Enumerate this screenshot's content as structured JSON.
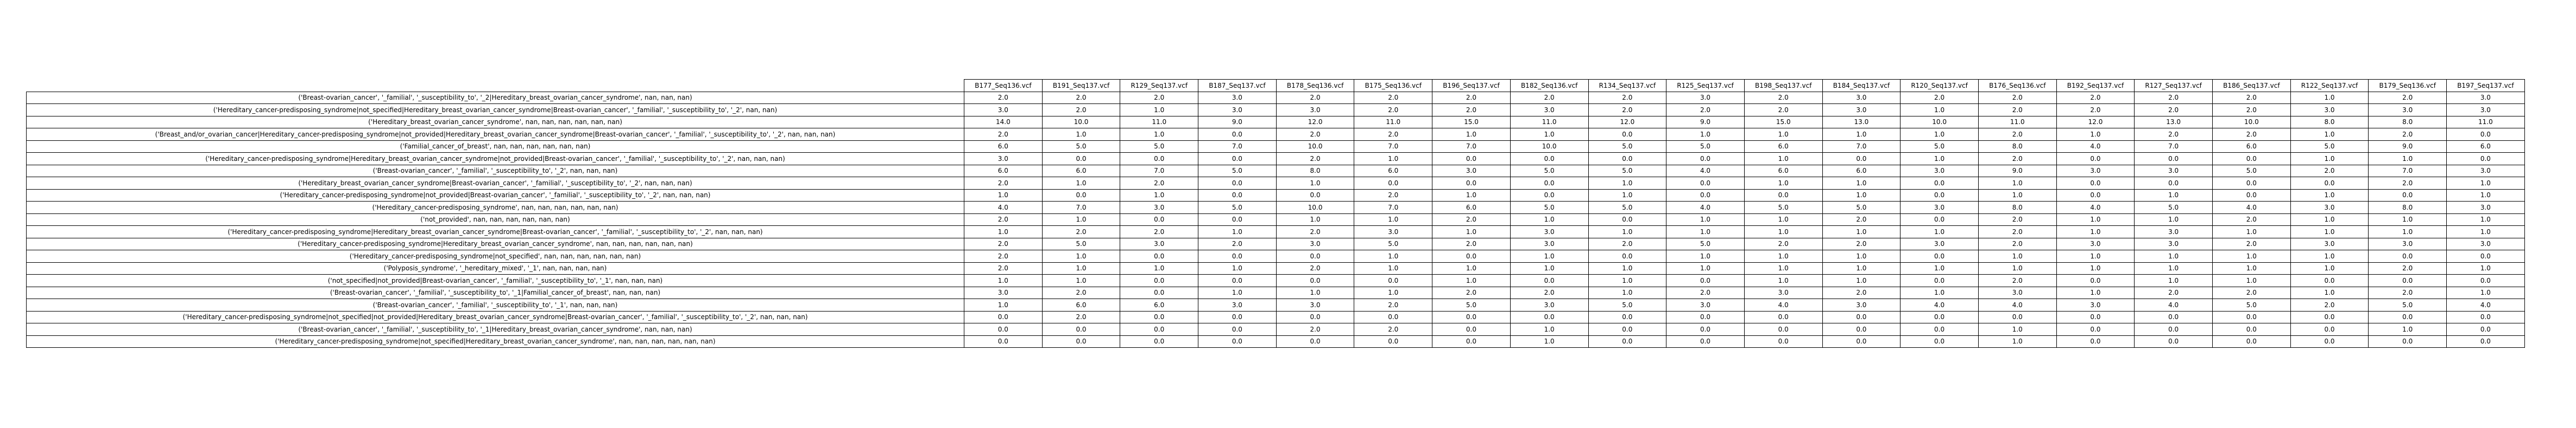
{
  "chart_data": {
    "type": "table",
    "columns": [
      "B177_Seq136.vcf",
      "B191_Seq137.vcf",
      "R129_Seq137.vcf",
      "B187_Seq137.vcf",
      "B178_Seq136.vcf",
      "B175_Seq136.vcf",
      "B196_Seq137.vcf",
      "B182_Seq136.vcf",
      "R134_Seq137.vcf",
      "R125_Seq137.vcf",
      "B198_Seq137.vcf",
      "B184_Seq137.vcf",
      "R120_Seq137.vcf",
      "B176_Seq136.vcf",
      "B192_Seq137.vcf",
      "R127_Seq137.vcf",
      "B186_Seq137.vcf",
      "R122_Seq137.vcf",
      "B179_Seq136.vcf",
      "B197_Seq137.vcf"
    ],
    "rows": [
      {
        "label": "('Breast-ovarian_cancer', '_familial', '_susceptibility_to', '_2|Hereditary_breast_ovarian_cancer_syndrome', nan, nan, nan)",
        "values": [
          "2.0",
          "2.0",
          "2.0",
          "3.0",
          "2.0",
          "2.0",
          "2.0",
          "2.0",
          "2.0",
          "3.0",
          "2.0",
          "3.0",
          "2.0",
          "2.0",
          "2.0",
          "2.0",
          "2.0",
          "1.0",
          "2.0",
          "3.0"
        ]
      },
      {
        "label": "('Hereditary_cancer-predisposing_syndrome|not_specified|Hereditary_breast_ovarian_cancer_syndrome|Breast-ovarian_cancer', '_familial', '_susceptibility_to', '_2', nan, nan)",
        "values": [
          "3.0",
          "2.0",
          "1.0",
          "3.0",
          "3.0",
          "2.0",
          "2.0",
          "3.0",
          "2.0",
          "2.0",
          "2.0",
          "3.0",
          "1.0",
          "2.0",
          "2.0",
          "2.0",
          "2.0",
          "3.0",
          "3.0",
          "3.0"
        ]
      },
      {
        "label": "('Hereditary_breast_ovarian_cancer_syndrome', nan, nan, nan, nan, nan, nan)",
        "values": [
          "14.0",
          "10.0",
          "11.0",
          "9.0",
          "12.0",
          "11.0",
          "15.0",
          "11.0",
          "12.0",
          "9.0",
          "15.0",
          "13.0",
          "10.0",
          "11.0",
          "12.0",
          "13.0",
          "10.0",
          "8.0",
          "8.0",
          "11.0"
        ]
      },
      {
        "label": "('Breast_and/or_ovarian_cancer|Hereditary_cancer-predisposing_syndrome|not_provided|Hereditary_breast_ovarian_cancer_syndrome|Breast-ovarian_cancer', '_familial', '_susceptibility_to', '_2', nan, nan, nan)",
        "values": [
          "2.0",
          "1.0",
          "1.0",
          "0.0",
          "2.0",
          "2.0",
          "1.0",
          "1.0",
          "0.0",
          "1.0",
          "1.0",
          "1.0",
          "1.0",
          "2.0",
          "1.0",
          "2.0",
          "2.0",
          "1.0",
          "2.0",
          "0.0"
        ]
      },
      {
        "label": "('Familial_cancer_of_breast', nan, nan, nan, nan, nan, nan)",
        "values": [
          "6.0",
          "5.0",
          "5.0",
          "7.0",
          "10.0",
          "7.0",
          "7.0",
          "10.0",
          "5.0",
          "5.0",
          "6.0",
          "7.0",
          "5.0",
          "8.0",
          "4.0",
          "7.0",
          "6.0",
          "5.0",
          "9.0",
          "6.0"
        ]
      },
      {
        "label": "('Hereditary_cancer-predisposing_syndrome|Hereditary_breast_ovarian_cancer_syndrome|not_provided|Breast-ovarian_cancer', '_familial', '_susceptibility_to', '_2', nan, nan, nan)",
        "values": [
          "3.0",
          "0.0",
          "0.0",
          "0.0",
          "2.0",
          "1.0",
          "0.0",
          "0.0",
          "0.0",
          "0.0",
          "1.0",
          "0.0",
          "1.0",
          "2.0",
          "0.0",
          "0.0",
          "0.0",
          "1.0",
          "1.0",
          "0.0"
        ]
      },
      {
        "label": "('Breast-ovarian_cancer', '_familial', '_susceptibility_to', '_2', nan, nan, nan)",
        "values": [
          "6.0",
          "6.0",
          "7.0",
          "5.0",
          "8.0",
          "6.0",
          "3.0",
          "5.0",
          "5.0",
          "4.0",
          "6.0",
          "6.0",
          "3.0",
          "9.0",
          "3.0",
          "3.0",
          "5.0",
          "2.0",
          "7.0",
          "3.0"
        ]
      },
      {
        "label": "('Hereditary_breast_ovarian_cancer_syndrome|Breast-ovarian_cancer', '_familial', '_susceptibility_to', '_2', nan, nan, nan)",
        "values": [
          "2.0",
          "1.0",
          "2.0",
          "0.0",
          "1.0",
          "0.0",
          "0.0",
          "0.0",
          "1.0",
          "0.0",
          "1.0",
          "1.0",
          "0.0",
          "1.0",
          "0.0",
          "0.0",
          "0.0",
          "0.0",
          "2.0",
          "1.0"
        ]
      },
      {
        "label": "('Hereditary_cancer-predisposing_syndrome|not_provided|Breast-ovarian_cancer', '_familial', '_susceptibility_to', '_2', nan, nan, nan)",
        "values": [
          "1.0",
          "0.0",
          "1.0",
          "0.0",
          "0.0",
          "2.0",
          "1.0",
          "0.0",
          "1.0",
          "0.0",
          "0.0",
          "1.0",
          "0.0",
          "1.0",
          "0.0",
          "1.0",
          "0.0",
          "1.0",
          "0.0",
          "1.0"
        ]
      },
      {
        "label": "('Hereditary_cancer-predisposing_syndrome', nan, nan, nan, nan, nan, nan)",
        "values": [
          "4.0",
          "7.0",
          "3.0",
          "5.0",
          "10.0",
          "7.0",
          "6.0",
          "5.0",
          "5.0",
          "4.0",
          "5.0",
          "5.0",
          "3.0",
          "8.0",
          "4.0",
          "5.0",
          "4.0",
          "3.0",
          "8.0",
          "3.0"
        ]
      },
      {
        "label": "('not_provided', nan, nan, nan, nan, nan, nan)",
        "values": [
          "2.0",
          "1.0",
          "0.0",
          "0.0",
          "1.0",
          "1.0",
          "2.0",
          "1.0",
          "0.0",
          "1.0",
          "1.0",
          "2.0",
          "0.0",
          "2.0",
          "1.0",
          "1.0",
          "2.0",
          "1.0",
          "1.0",
          "1.0"
        ]
      },
      {
        "label": "('Hereditary_cancer-predisposing_syndrome|Hereditary_breast_ovarian_cancer_syndrome|Breast-ovarian_cancer', '_familial', '_susceptibility_to', '_2', nan, nan, nan)",
        "values": [
          "1.0",
          "2.0",
          "2.0",
          "1.0",
          "2.0",
          "3.0",
          "1.0",
          "3.0",
          "1.0",
          "1.0",
          "1.0",
          "1.0",
          "1.0",
          "2.0",
          "1.0",
          "3.0",
          "1.0",
          "1.0",
          "1.0",
          "1.0"
        ]
      },
      {
        "label": "('Hereditary_cancer-predisposing_syndrome|Hereditary_breast_ovarian_cancer_syndrome', nan, nan, nan, nan, nan, nan)",
        "values": [
          "2.0",
          "5.0",
          "3.0",
          "2.0",
          "3.0",
          "5.0",
          "2.0",
          "3.0",
          "2.0",
          "5.0",
          "2.0",
          "2.0",
          "3.0",
          "2.0",
          "3.0",
          "3.0",
          "2.0",
          "3.0",
          "3.0",
          "3.0"
        ]
      },
      {
        "label": "('Hereditary_cancer-predisposing_syndrome|not_specified', nan, nan, nan, nan, nan, nan)",
        "values": [
          "2.0",
          "1.0",
          "0.0",
          "0.0",
          "0.0",
          "1.0",
          "0.0",
          "1.0",
          "0.0",
          "1.0",
          "1.0",
          "1.0",
          "0.0",
          "1.0",
          "1.0",
          "1.0",
          "1.0",
          "1.0",
          "0.0",
          "0.0"
        ]
      },
      {
        "label": "('Polyposis_syndrome', '_hereditary_mixed', '_1', nan, nan, nan, nan)",
        "values": [
          "2.0",
          "1.0",
          "1.0",
          "1.0",
          "2.0",
          "1.0",
          "1.0",
          "1.0",
          "1.0",
          "1.0",
          "1.0",
          "1.0",
          "1.0",
          "1.0",
          "1.0",
          "1.0",
          "1.0",
          "1.0",
          "2.0",
          "1.0"
        ]
      },
      {
        "label": "('not_specified|not_provided|Breast-ovarian_cancer', '_familial', '_susceptibility_to', '_1', nan, nan, nan)",
        "values": [
          "1.0",
          "1.0",
          "0.0",
          "0.0",
          "0.0",
          "0.0",
          "1.0",
          "0.0",
          "1.0",
          "0.0",
          "1.0",
          "1.0",
          "0.0",
          "2.0",
          "0.0",
          "1.0",
          "1.0",
          "0.0",
          "0.0",
          "0.0"
        ]
      },
      {
        "label": "('Breast-ovarian_cancer', '_familial', '_susceptibility_to', '_1|Familial_cancer_of_breast', nan, nan, nan)",
        "values": [
          "3.0",
          "2.0",
          "0.0",
          "1.0",
          "1.0",
          "1.0",
          "2.0",
          "2.0",
          "1.0",
          "2.0",
          "3.0",
          "2.0",
          "1.0",
          "3.0",
          "1.0",
          "2.0",
          "2.0",
          "1.0",
          "2.0",
          "1.0"
        ]
      },
      {
        "label": "('Breast-ovarian_cancer', '_familial', '_susceptibility_to', '_1', nan, nan, nan)",
        "values": [
          "1.0",
          "6.0",
          "6.0",
          "3.0",
          "3.0",
          "2.0",
          "5.0",
          "3.0",
          "5.0",
          "3.0",
          "4.0",
          "3.0",
          "4.0",
          "4.0",
          "3.0",
          "4.0",
          "5.0",
          "2.0",
          "5.0",
          "4.0"
        ]
      },
      {
        "label": "('Hereditary_cancer-predisposing_syndrome|not_specified|not_provided|Hereditary_breast_ovarian_cancer_syndrome|Breast-ovarian_cancer', '_familial', '_susceptibility_to', '_2', nan, nan, nan)",
        "values": [
          "0.0",
          "2.0",
          "0.0",
          "0.0",
          "0.0",
          "0.0",
          "0.0",
          "0.0",
          "0.0",
          "0.0",
          "0.0",
          "0.0",
          "0.0",
          "0.0",
          "0.0",
          "0.0",
          "0.0",
          "0.0",
          "0.0",
          "0.0"
        ]
      },
      {
        "label": "('Breast-ovarian_cancer', '_familial', '_susceptibility_to', '_1|Hereditary_breast_ovarian_cancer_syndrome', nan, nan, nan)",
        "values": [
          "0.0",
          "0.0",
          "0.0",
          "0.0",
          "2.0",
          "2.0",
          "0.0",
          "1.0",
          "0.0",
          "0.0",
          "0.0",
          "0.0",
          "0.0",
          "1.0",
          "0.0",
          "0.0",
          "0.0",
          "0.0",
          "1.0",
          "0.0"
        ]
      },
      {
        "label": "('Hereditary_cancer-predisposing_syndrome|not_specified|Hereditary_breast_ovarian_cancer_syndrome', nan, nan, nan, nan, nan, nan)",
        "values": [
          "0.0",
          "0.0",
          "0.0",
          "0.0",
          "0.0",
          "0.0",
          "0.0",
          "1.0",
          "0.0",
          "0.0",
          "0.0",
          "0.0",
          "0.0",
          "1.0",
          "0.0",
          "0.0",
          "0.0",
          "0.0",
          "0.0",
          "0.0"
        ]
      }
    ]
  }
}
